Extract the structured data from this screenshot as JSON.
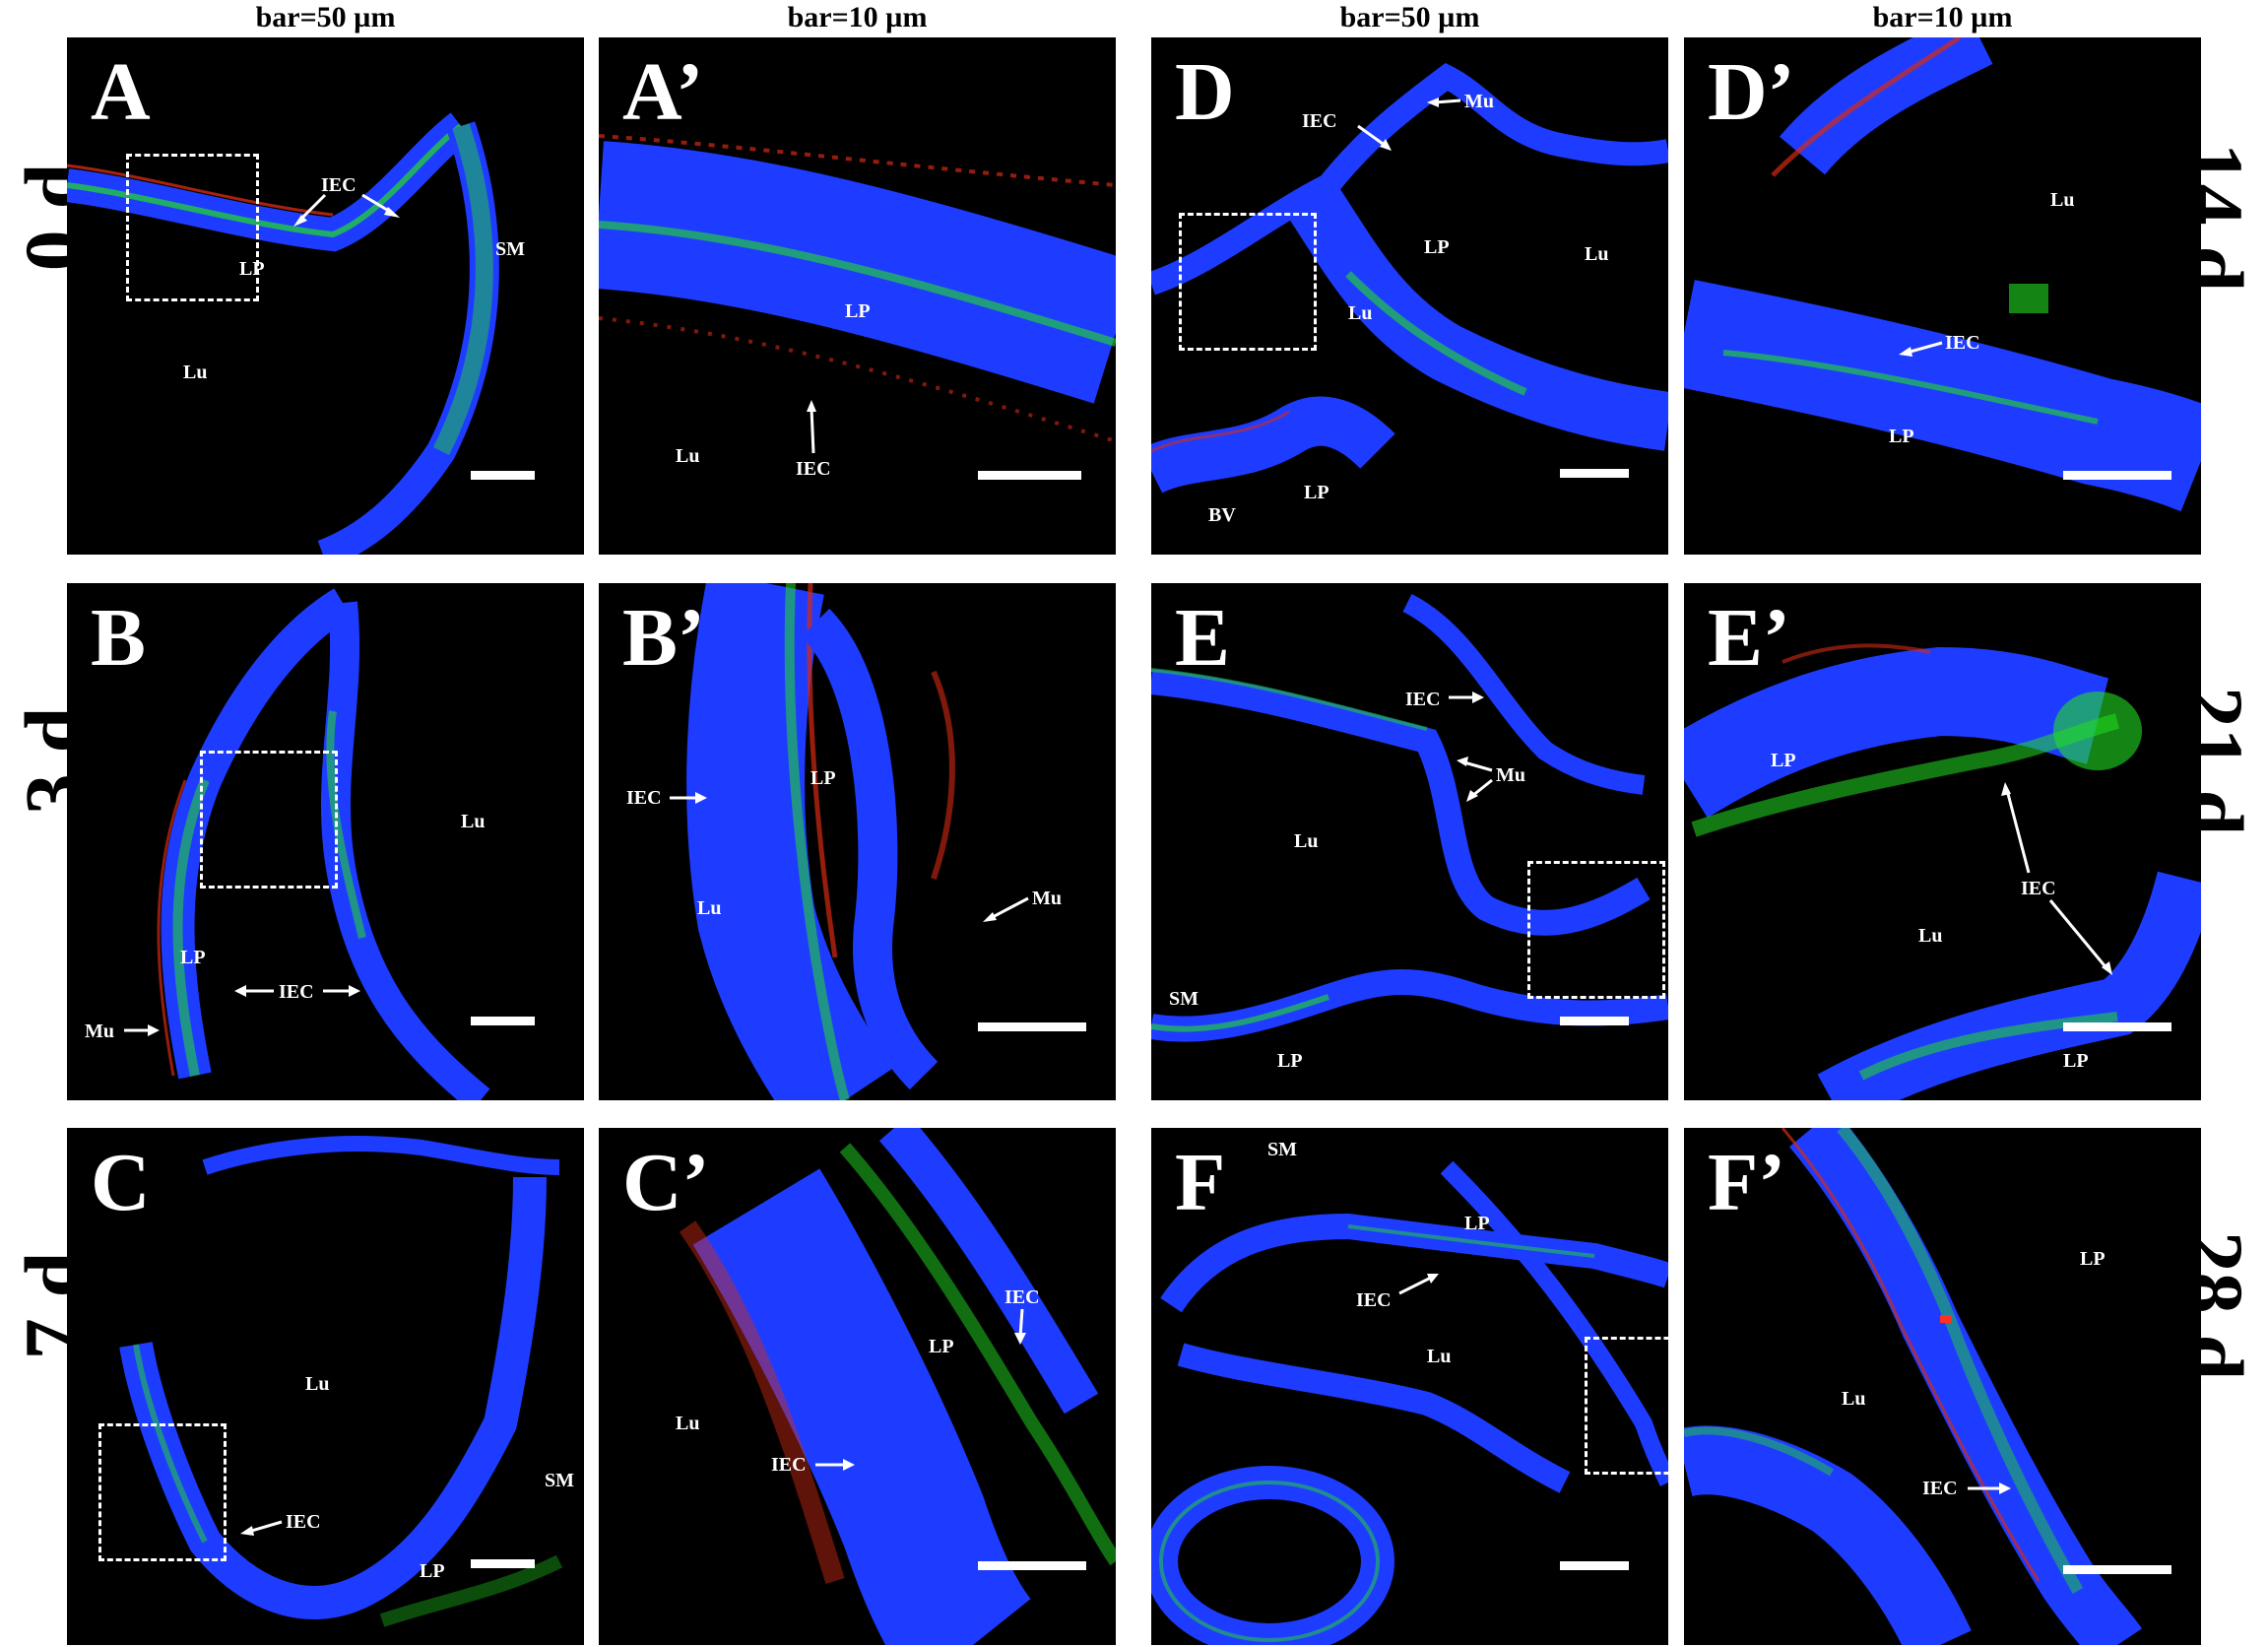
{
  "column_headers": [
    "bar=50 µm",
    "bar=10 µm",
    "bar=50 µm",
    "bar=10 µm"
  ],
  "row_labels_left": [
    "0 d",
    "3 d",
    "7 d"
  ],
  "row_labels_right": [
    "14 d",
    "21 d",
    "28 d"
  ],
  "colors": {
    "nuclei": "#1e3cff",
    "green_signal": "#22dd22",
    "red_signal": "#d42a12",
    "background": "#000000",
    "annotation": "#ffffff"
  },
  "panels": [
    {
      "id": "A",
      "letter": "A",
      "labels": [
        {
          "text": "IEC",
          "dir": "down-left"
        },
        {
          "text": "IEC",
          "dir": "down-right"
        },
        {
          "text": "LP"
        },
        {
          "text": "SM"
        },
        {
          "text": "Lu"
        }
      ]
    },
    {
      "id": "A2",
      "letter": "A’",
      "labels": [
        {
          "text": "LP"
        },
        {
          "text": "Lu"
        },
        {
          "text": "IEC",
          "dir": "up"
        }
      ]
    },
    {
      "id": "D",
      "letter": "D",
      "labels": [
        {
          "text": "Mu",
          "dir": "left"
        },
        {
          "text": "IEC",
          "dir": "down-right"
        },
        {
          "text": "LP"
        },
        {
          "text": "Lu"
        },
        {
          "text": "Lu"
        },
        {
          "text": "BV"
        },
        {
          "text": "LP"
        }
      ]
    },
    {
      "id": "D2",
      "letter": "D’",
      "labels": [
        {
          "text": "Lu"
        },
        {
          "text": "IEC",
          "dir": "left"
        },
        {
          "text": "LP"
        }
      ]
    },
    {
      "id": "B",
      "letter": "B",
      "labels": [
        {
          "text": "Lu"
        },
        {
          "text": "LP"
        },
        {
          "text": "IEC",
          "dir": "both"
        },
        {
          "text": "Mu",
          "dir": "right"
        }
      ]
    },
    {
      "id": "B2",
      "letter": "B’",
      "labels": [
        {
          "text": "LP"
        },
        {
          "text": "IEC",
          "dir": "right"
        },
        {
          "text": "Lu"
        },
        {
          "text": "Mu",
          "dir": "left"
        }
      ]
    },
    {
      "id": "E",
      "letter": "E",
      "labels": [
        {
          "text": "IEC",
          "dir": "right"
        },
        {
          "text": "Mu",
          "dir": "left"
        },
        {
          "text": "Lu"
        },
        {
          "text": "SM"
        },
        {
          "text": "LP"
        }
      ]
    },
    {
      "id": "E2",
      "letter": "E’",
      "labels": [
        {
          "text": "LP"
        },
        {
          "text": "IEC",
          "dir": "two"
        },
        {
          "text": "Lu"
        },
        {
          "text": "LP"
        }
      ]
    },
    {
      "id": "C",
      "letter": "C",
      "labels": [
        {
          "text": "Lu"
        },
        {
          "text": "IEC",
          "dir": "left"
        },
        {
          "text": "SM"
        },
        {
          "text": "LP"
        }
      ]
    },
    {
      "id": "C2",
      "letter": "C’",
      "labels": [
        {
          "text": "IEC",
          "dir": "down"
        },
        {
          "text": "LP"
        },
        {
          "text": "Lu"
        },
        {
          "text": "IEC",
          "dir": "right"
        }
      ]
    },
    {
      "id": "F",
      "letter": "F",
      "labels": [
        {
          "text": "SM"
        },
        {
          "text": "LP"
        },
        {
          "text": "IEC",
          "dir": "right"
        },
        {
          "text": "Lu"
        }
      ]
    },
    {
      "id": "F2",
      "letter": "F’",
      "labels": [
        {
          "text": "LP"
        },
        {
          "text": "Lu"
        },
        {
          "text": "IEC",
          "dir": "right"
        }
      ]
    }
  ]
}
